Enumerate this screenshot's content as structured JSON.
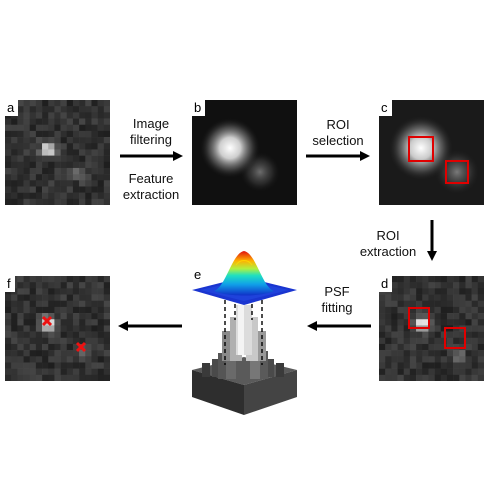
{
  "panels": {
    "a": {
      "label": "a"
    },
    "b": {
      "label": "b"
    },
    "c": {
      "label": "c"
    },
    "d": {
      "label": "d"
    },
    "e": {
      "label": "e"
    },
    "f": {
      "label": "f"
    }
  },
  "steps": {
    "filter_line1": "Image",
    "filter_line2": "filtering",
    "feature_line1": "Feature",
    "feature_line2": "extraction",
    "roi_sel_line1": "ROI",
    "roi_sel_line2": "selection",
    "roi_ext_line1": "ROI",
    "roi_ext_line2": "extraction",
    "psf_line1": "PSF",
    "psf_line2": "fitting"
  },
  "colors": {
    "roi_box": "#e00000",
    "marker": "#ee1111",
    "arrow": "#000000"
  }
}
